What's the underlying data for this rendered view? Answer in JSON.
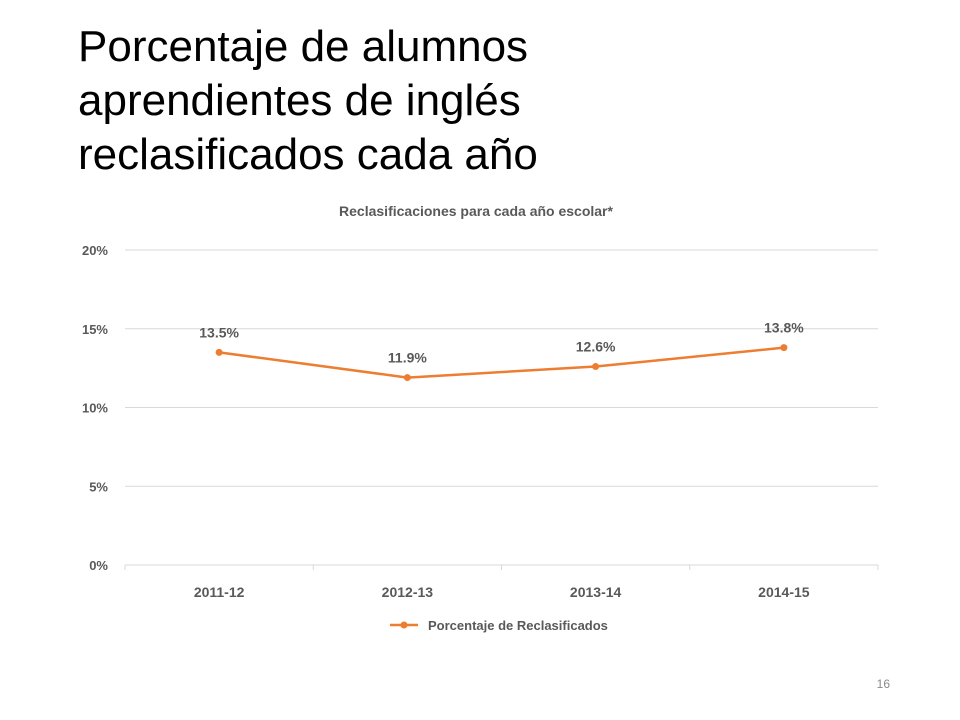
{
  "slide": {
    "title_lines": [
      "Porcentaje de alumnos",
      "aprendientes de inglés",
      "reclasificados cada año"
    ],
    "page_number": "16"
  },
  "chart_data": {
    "type": "line",
    "title": "Reclasificaciones para cada año escolar*",
    "xlabel": "",
    "ylabel": "",
    "categories": [
      "2011-12",
      "2012-13",
      "2013-14",
      "2014-15"
    ],
    "series": [
      {
        "name": "Porcentaje de Reclasificados",
        "values": [
          13.5,
          11.9,
          12.6,
          13.8
        ],
        "labels": [
          "13.5%",
          "11.9%",
          "12.6%",
          "13.8%"
        ],
        "color": "#ED7D31"
      }
    ],
    "ylim": [
      0,
      20
    ],
    "yticks": [
      0,
      5,
      10,
      15,
      20
    ],
    "ytick_labels": [
      "0%",
      "5%",
      "10%",
      "15%",
      "20%"
    ],
    "grid": true,
    "legend": "bottom",
    "colors": {
      "title": "#595959",
      "axis_text": "#595959",
      "gridline": "#D9D9D9",
      "axis_line": "#D9D9D9"
    }
  }
}
